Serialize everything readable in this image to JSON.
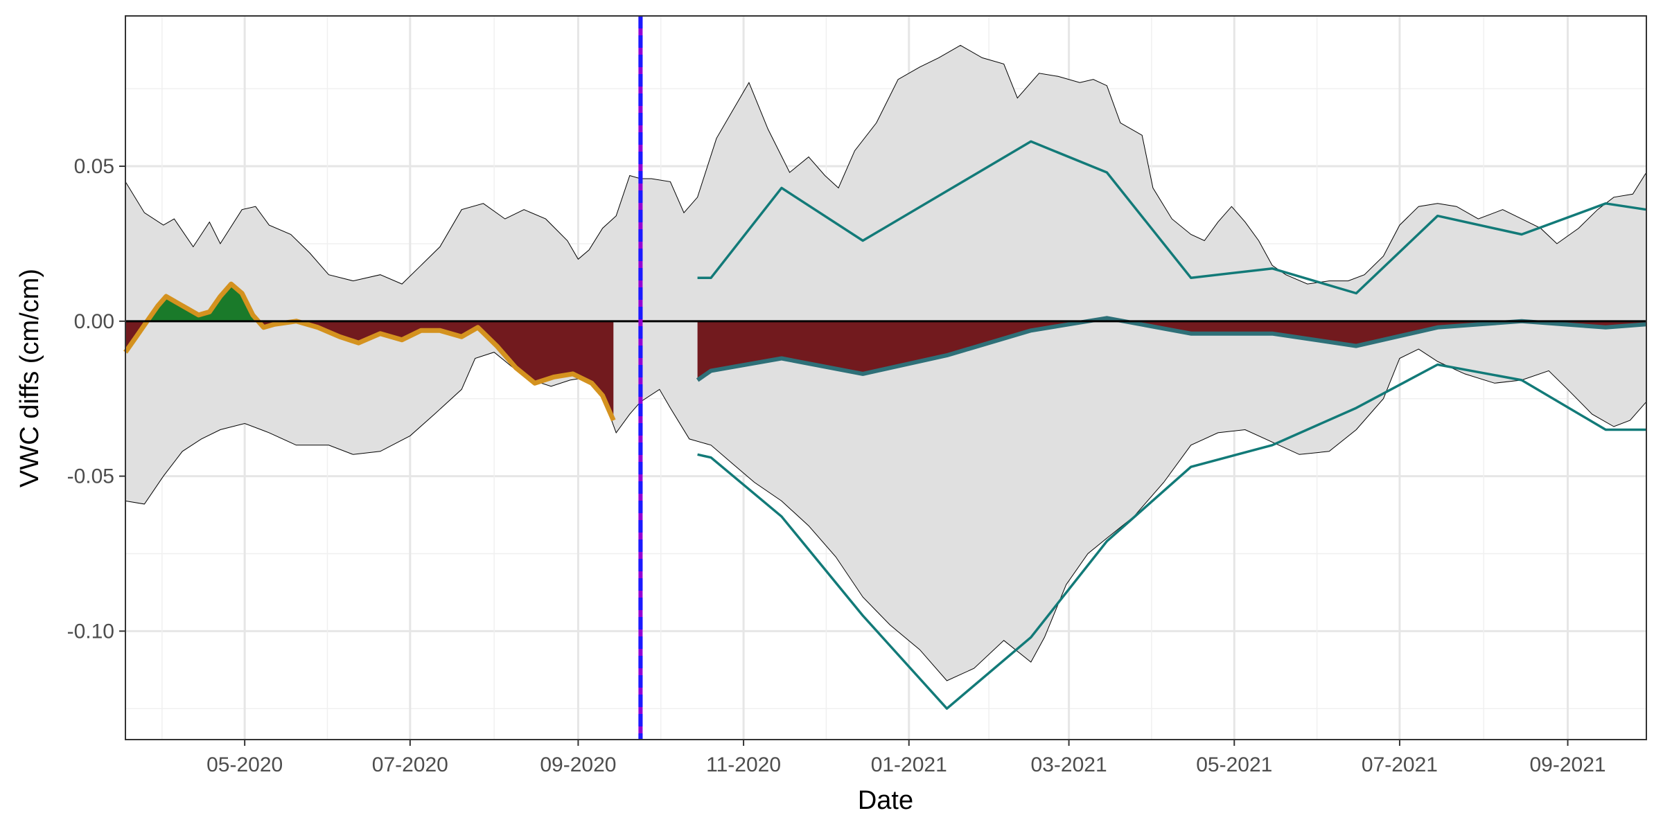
{
  "chart_data": {
    "type": "area",
    "title": "",
    "xlabel": "Date",
    "ylabel": "VWC diffs (cm/cm)",
    "x_range": [
      "2020-03-18",
      "2021-09-30"
    ],
    "ylim": [
      -0.135,
      0.0985
    ],
    "grid": true,
    "legend": "none",
    "x_ticks": [
      {
        "date": "2020-05-01",
        "label": "05-2020"
      },
      {
        "date": "2020-07-01",
        "label": "07-2020"
      },
      {
        "date": "2020-09-01",
        "label": "09-2020"
      },
      {
        "date": "2020-11-01",
        "label": "11-2020"
      },
      {
        "date": "2021-01-01",
        "label": "01-2021"
      },
      {
        "date": "2021-03-01",
        "label": "03-2021"
      },
      {
        "date": "2021-05-01",
        "label": "05-2021"
      },
      {
        "date": "2021-07-01",
        "label": "07-2021"
      },
      {
        "date": "2021-09-01",
        "label": "09-2021"
      }
    ],
    "y_ticks": [
      {
        "value": 0.05,
        "label": "0.05"
      },
      {
        "value": 0.0,
        "label": "0.00"
      },
      {
        "value": -0.05,
        "label": "-0.05"
      },
      {
        "value": -0.1,
        "label": "-0.10"
      }
    ],
    "reference_line": {
      "y": 0.0,
      "color": "#000000"
    },
    "event_line": {
      "date": "2020-09-24",
      "color": "#1a1aff",
      "underline_color": "#9400d3",
      "style": "dashed"
    },
    "band": {
      "fill": "#e0e0e0",
      "stroke": "#000000",
      "upper": [
        [
          "2020-03-18",
          0.045
        ],
        [
          "2020-03-25",
          0.035
        ],
        [
          "2020-04-01",
          0.031
        ],
        [
          "2020-04-05",
          0.033
        ],
        [
          "2020-04-12",
          0.024
        ],
        [
          "2020-04-18",
          0.032
        ],
        [
          "2020-04-22",
          0.025
        ],
        [
          "2020-04-30",
          0.036
        ],
        [
          "2020-05-05",
          0.037
        ],
        [
          "2020-05-10",
          0.031
        ],
        [
          "2020-05-18",
          0.028
        ],
        [
          "2020-05-25",
          0.022
        ],
        [
          "2020-06-01",
          0.015
        ],
        [
          "2020-06-10",
          0.013
        ],
        [
          "2020-06-20",
          0.015
        ],
        [
          "2020-06-28",
          0.012
        ],
        [
          "2020-07-05",
          0.018
        ],
        [
          "2020-07-12",
          0.024
        ],
        [
          "2020-07-20",
          0.036
        ],
        [
          "2020-07-28",
          0.038
        ],
        [
          "2020-08-05",
          0.033
        ],
        [
          "2020-08-12",
          0.036
        ],
        [
          "2020-08-20",
          0.033
        ],
        [
          "2020-08-28",
          0.026
        ],
        [
          "2020-09-01",
          0.02
        ],
        [
          "2020-09-05",
          0.023
        ],
        [
          "2020-09-10",
          0.03
        ],
        [
          "2020-09-15",
          0.034
        ],
        [
          "2020-09-20",
          0.047
        ],
        [
          "2020-09-24",
          0.046
        ],
        [
          "2020-09-28",
          0.046
        ],
        [
          "2020-10-05",
          0.045
        ],
        [
          "2020-10-10",
          0.035
        ],
        [
          "2020-10-15",
          0.04
        ],
        [
          "2020-10-22",
          0.059
        ],
        [
          "2020-10-28",
          0.068
        ],
        [
          "2020-11-03",
          0.077
        ],
        [
          "2020-11-10",
          0.062
        ],
        [
          "2020-11-18",
          0.048
        ],
        [
          "2020-11-25",
          0.053
        ],
        [
          "2020-12-01",
          0.047
        ],
        [
          "2020-12-06",
          0.043
        ],
        [
          "2020-12-12",
          0.055
        ],
        [
          "2020-12-20",
          0.064
        ],
        [
          "2020-12-28",
          0.078
        ],
        [
          "2021-01-05",
          0.082
        ],
        [
          "2021-01-12",
          0.085
        ],
        [
          "2021-01-20",
          0.089
        ],
        [
          "2021-01-28",
          0.085
        ],
        [
          "2021-02-05",
          0.083
        ],
        [
          "2021-02-10",
          0.072
        ],
        [
          "2021-02-18",
          0.08
        ],
        [
          "2021-02-25",
          0.079
        ],
        [
          "2021-03-05",
          0.077
        ],
        [
          "2021-03-10",
          0.078
        ],
        [
          "2021-03-15",
          0.076
        ],
        [
          "2021-03-20",
          0.064
        ],
        [
          "2021-03-28",
          0.06
        ],
        [
          "2021-04-01",
          0.043
        ],
        [
          "2021-04-08",
          0.033
        ],
        [
          "2021-04-15",
          0.028
        ],
        [
          "2021-04-20",
          0.026
        ],
        [
          "2021-04-25",
          0.032
        ],
        [
          "2021-04-30",
          0.037
        ],
        [
          "2021-05-05",
          0.032
        ],
        [
          "2021-05-10",
          0.026
        ],
        [
          "2021-05-15",
          0.018
        ],
        [
          "2021-05-20",
          0.015
        ],
        [
          "2021-05-28",
          0.012
        ],
        [
          "2021-06-05",
          0.013
        ],
        [
          "2021-06-12",
          0.013
        ],
        [
          "2021-06-18",
          0.015
        ],
        [
          "2021-06-25",
          0.021
        ],
        [
          "2021-07-01",
          0.031
        ],
        [
          "2021-07-08",
          0.037
        ],
        [
          "2021-07-15",
          0.038
        ],
        [
          "2021-07-22",
          0.037
        ],
        [
          "2021-07-30",
          0.033
        ],
        [
          "2021-08-08",
          0.036
        ],
        [
          "2021-08-15",
          0.033
        ],
        [
          "2021-08-22",
          0.03
        ],
        [
          "2021-08-28",
          0.025
        ],
        [
          "2021-09-05",
          0.03
        ],
        [
          "2021-09-12",
          0.036
        ],
        [
          "2021-09-18",
          0.04
        ],
        [
          "2021-09-25",
          0.041
        ],
        [
          "2021-09-30",
          0.048
        ]
      ],
      "lower": [
        [
          "2020-03-18",
          -0.058
        ],
        [
          "2020-03-25",
          -0.059
        ],
        [
          "2020-04-01",
          -0.05
        ],
        [
          "2020-04-08",
          -0.042
        ],
        [
          "2020-04-15",
          -0.038
        ],
        [
          "2020-04-22",
          -0.035
        ],
        [
          "2020-05-01",
          -0.033
        ],
        [
          "2020-05-10",
          -0.036
        ],
        [
          "2020-05-20",
          -0.04
        ],
        [
          "2020-06-01",
          -0.04
        ],
        [
          "2020-06-10",
          -0.043
        ],
        [
          "2020-06-20",
          -0.042
        ],
        [
          "2020-07-01",
          -0.037
        ],
        [
          "2020-07-10",
          -0.03
        ],
        [
          "2020-07-20",
          -0.022
        ],
        [
          "2020-07-25",
          -0.012
        ],
        [
          "2020-08-01",
          -0.01
        ],
        [
          "2020-08-08",
          -0.015
        ],
        [
          "2020-08-15",
          -0.019
        ],
        [
          "2020-08-22",
          -0.021
        ],
        [
          "2020-08-29",
          -0.019
        ],
        [
          "2020-09-05",
          -0.018
        ],
        [
          "2020-09-10",
          -0.024
        ],
        [
          "2020-09-15",
          -0.036
        ],
        [
          "2020-09-20",
          -0.03
        ],
        [
          "2020-09-24",
          -0.026
        ],
        [
          "2020-10-01",
          -0.022
        ],
        [
          "2020-10-05",
          -0.028
        ],
        [
          "2020-10-12",
          -0.038
        ],
        [
          "2020-10-20",
          -0.04
        ],
        [
          "2020-10-28",
          -0.046
        ],
        [
          "2020-11-05",
          -0.052
        ],
        [
          "2020-11-15",
          -0.058
        ],
        [
          "2020-11-25",
          -0.066
        ],
        [
          "2020-12-05",
          -0.076
        ],
        [
          "2020-12-15",
          -0.089
        ],
        [
          "2020-12-25",
          -0.098
        ],
        [
          "2021-01-05",
          -0.106
        ],
        [
          "2021-01-15",
          -0.116
        ],
        [
          "2021-01-25",
          -0.112
        ],
        [
          "2021-02-05",
          -0.103
        ],
        [
          "2021-02-15",
          -0.11
        ],
        [
          "2021-02-20",
          -0.102
        ],
        [
          "2021-02-28",
          -0.085
        ],
        [
          "2021-03-08",
          -0.075
        ],
        [
          "2021-03-15",
          -0.07
        ],
        [
          "2021-03-25",
          -0.063
        ],
        [
          "2021-04-05",
          -0.052
        ],
        [
          "2021-04-15",
          -0.04
        ],
        [
          "2021-04-25",
          -0.036
        ],
        [
          "2021-05-05",
          -0.035
        ],
        [
          "2021-05-15",
          -0.039
        ],
        [
          "2021-05-25",
          -0.043
        ],
        [
          "2021-06-05",
          -0.042
        ],
        [
          "2021-06-15",
          -0.035
        ],
        [
          "2021-06-25",
          -0.025
        ],
        [
          "2021-07-01",
          -0.012
        ],
        [
          "2021-07-08",
          -0.009
        ],
        [
          "2021-07-15",
          -0.013
        ],
        [
          "2021-07-25",
          -0.017
        ],
        [
          "2021-08-05",
          -0.02
        ],
        [
          "2021-08-15",
          -0.019
        ],
        [
          "2021-08-25",
          -0.016
        ],
        [
          "2021-09-01",
          -0.022
        ],
        [
          "2021-09-10",
          -0.03
        ],
        [
          "2021-09-18",
          -0.034
        ],
        [
          "2021-09-24",
          -0.032
        ],
        [
          "2021-09-30",
          -0.026
        ]
      ]
    },
    "series": [
      {
        "name": "",
        "style": "area-filled",
        "fill_color": "#721a1e",
        "line_color": "#d4921f",
        "values": [
          [
            "2020-03-18",
            -0.01
          ],
          [
            "2020-03-22",
            -0.005
          ],
          [
            "2020-03-26",
            0.0
          ],
          [
            "2020-03-30",
            0.005
          ],
          [
            "2020-04-02",
            0.008
          ],
          [
            "2020-04-06",
            0.006
          ],
          [
            "2020-04-10",
            0.004
          ],
          [
            "2020-04-14",
            0.002
          ],
          [
            "2020-04-18",
            0.003
          ],
          [
            "2020-04-22",
            0.008
          ],
          [
            "2020-04-26",
            0.012
          ],
          [
            "2020-04-30",
            0.009
          ],
          [
            "2020-05-04",
            0.002
          ],
          [
            "2020-05-08",
            -0.002
          ],
          [
            "2020-05-12",
            -0.001
          ],
          [
            "2020-05-20",
            0.0
          ],
          [
            "2020-05-28",
            -0.002
          ],
          [
            "2020-06-05",
            -0.005
          ],
          [
            "2020-06-12",
            -0.007
          ],
          [
            "2020-06-20",
            -0.004
          ],
          [
            "2020-06-28",
            -0.006
          ],
          [
            "2020-07-05",
            -0.003
          ],
          [
            "2020-07-12",
            -0.003
          ],
          [
            "2020-07-20",
            -0.005
          ],
          [
            "2020-07-26",
            -0.002
          ],
          [
            "2020-08-02",
            -0.008
          ],
          [
            "2020-08-09",
            -0.015
          ],
          [
            "2020-08-16",
            -0.02
          ],
          [
            "2020-08-23",
            -0.018
          ],
          [
            "2020-08-30",
            -0.017
          ],
          [
            "2020-09-06",
            -0.02
          ],
          [
            "2020-09-10",
            -0.024
          ],
          [
            "2020-09-14",
            -0.032
          ]
        ],
        "green_fill": "#1a7a2a"
      },
      {
        "name": "",
        "style": "area-filled",
        "fill_color": "#721a1e",
        "line_color": "#2e7078",
        "values": [
          [
            "2020-10-15",
            -0.019
          ],
          [
            "2020-10-20",
            -0.016
          ],
          [
            "2020-11-15",
            -0.012
          ],
          [
            "2020-12-15",
            -0.017
          ],
          [
            "2021-01-15",
            -0.011
          ],
          [
            "2021-02-15",
            -0.003
          ],
          [
            "2021-03-15",
            0.001
          ],
          [
            "2021-04-15",
            -0.004
          ],
          [
            "2021-05-15",
            -0.004
          ],
          [
            "2021-06-15",
            -0.008
          ],
          [
            "2021-07-15",
            -0.002
          ],
          [
            "2021-08-15",
            0.0
          ],
          [
            "2021-09-15",
            -0.002
          ],
          [
            "2021-09-30",
            -0.001
          ]
        ]
      },
      {
        "name": "",
        "style": "line",
        "line_color": "#127a78",
        "values": [
          [
            "2020-10-15",
            0.014
          ],
          [
            "2020-10-20",
            0.014
          ],
          [
            "2020-11-15",
            0.043
          ],
          [
            "2020-12-15",
            0.026
          ],
          [
            "2021-01-15",
            0.042
          ],
          [
            "2021-02-15",
            0.058
          ],
          [
            "2021-03-15",
            0.048
          ],
          [
            "2021-04-15",
            0.014
          ],
          [
            "2021-05-15",
            0.017
          ],
          [
            "2021-06-15",
            0.009
          ],
          [
            "2021-07-15",
            0.034
          ],
          [
            "2021-08-15",
            0.028
          ],
          [
            "2021-09-15",
            0.038
          ],
          [
            "2021-09-30",
            0.036
          ]
        ]
      },
      {
        "name": "",
        "style": "line",
        "line_color": "#127a78",
        "values": [
          [
            "2020-10-15",
            -0.043
          ],
          [
            "2020-10-20",
            -0.044
          ],
          [
            "2020-11-15",
            -0.063
          ],
          [
            "2020-12-15",
            -0.095
          ],
          [
            "2021-01-15",
            -0.125
          ],
          [
            "2021-02-15",
            -0.102
          ],
          [
            "2021-03-15",
            -0.071
          ],
          [
            "2021-04-15",
            -0.047
          ],
          [
            "2021-05-15",
            -0.04
          ],
          [
            "2021-06-15",
            -0.028
          ],
          [
            "2021-07-15",
            -0.014
          ],
          [
            "2021-08-15",
            -0.019
          ],
          [
            "2021-09-15",
            -0.035
          ],
          [
            "2021-09-30",
            -0.035
          ]
        ]
      }
    ]
  }
}
